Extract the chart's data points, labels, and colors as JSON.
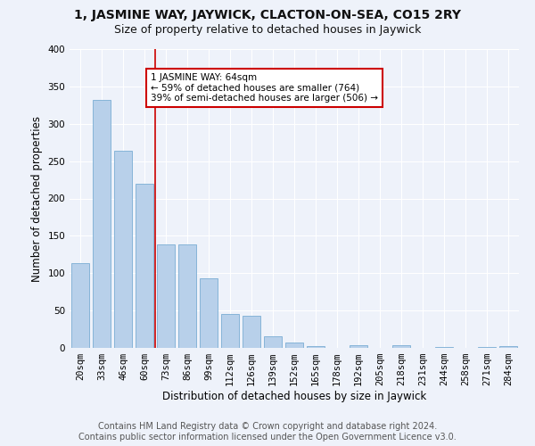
{
  "title": "1, JASMINE WAY, JAYWICK, CLACTON-ON-SEA, CO15 2RY",
  "subtitle": "Size of property relative to detached houses in Jaywick",
  "xlabel": "Distribution of detached houses by size in Jaywick",
  "ylabel": "Number of detached properties",
  "footer_line1": "Contains HM Land Registry data © Crown copyright and database right 2024.",
  "footer_line2": "Contains public sector information licensed under the Open Government Licence v3.0.",
  "categories": [
    "20sqm",
    "33sqm",
    "46sqm",
    "60sqm",
    "73sqm",
    "86sqm",
    "99sqm",
    "112sqm",
    "126sqm",
    "139sqm",
    "152sqm",
    "165sqm",
    "178sqm",
    "192sqm",
    "205sqm",
    "218sqm",
    "231sqm",
    "244sqm",
    "258sqm",
    "271sqm",
    "284sqm"
  ],
  "values": [
    113,
    332,
    264,
    220,
    138,
    138,
    93,
    45,
    43,
    15,
    7,
    2,
    0,
    4,
    0,
    3,
    0,
    1,
    0,
    1,
    2
  ],
  "bar_color": "#b8d0ea",
  "bar_edge_color": "#7aadd4",
  "property_label": "1 JASMINE WAY: 64sqm",
  "annotation_line1": "← 59% of detached houses are smaller (764)",
  "annotation_line2": "39% of semi-detached houses are larger (506) →",
  "vline_color": "#cc0000",
  "vline_position": 3.5,
  "annotation_box_color": "#cc0000",
  "ylim": [
    0,
    400
  ],
  "yticks": [
    0,
    50,
    100,
    150,
    200,
    250,
    300,
    350,
    400
  ],
  "bg_color": "#eef2fa",
  "grid_color": "#ffffff",
  "title_fontsize": 10,
  "subtitle_fontsize": 9,
  "axis_label_fontsize": 8.5,
  "tick_fontsize": 7.5,
  "footer_fontsize": 7
}
